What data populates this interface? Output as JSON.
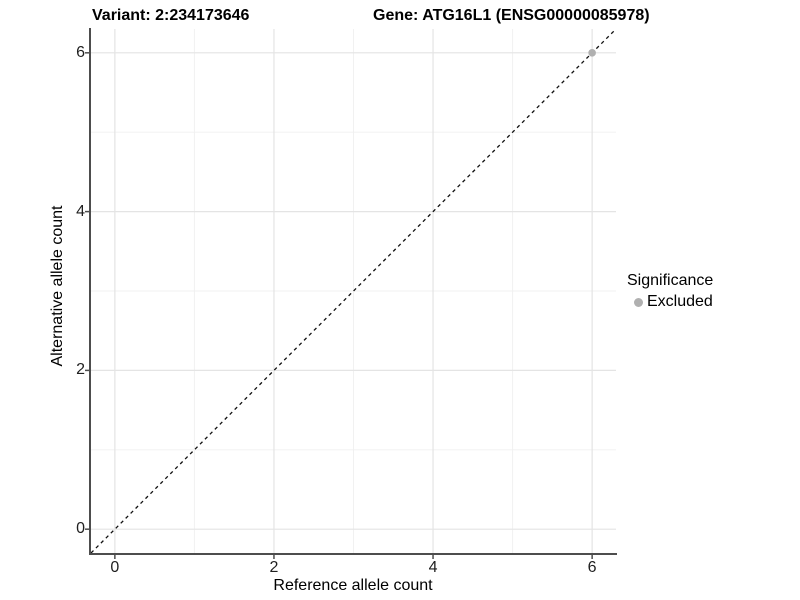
{
  "chart_data": {
    "type": "scatter",
    "titles": {
      "variant": "Variant: 2:234173646",
      "gene": "Gene: ATG16L1 (ENSG00000085978)"
    },
    "xlabel": "Reference allele count",
    "ylabel": "Alternative allele count",
    "xlim": [
      -0.3,
      6.3
    ],
    "ylim": [
      -0.3,
      6.3
    ],
    "x_ticks": [
      0,
      2,
      4,
      6
    ],
    "y_ticks": [
      0,
      2,
      4,
      6
    ],
    "x_minor_ticks": [
      1,
      3,
      5
    ],
    "y_minor_ticks": [
      1,
      3,
      5
    ],
    "grid": true,
    "identity_line": {
      "style": "dashed",
      "x1": -0.3,
      "y1": -0.3,
      "x2": 6.3,
      "y2": 6.3
    },
    "series": [
      {
        "name": "Excluded",
        "color": "#b0b0b0",
        "points": [
          {
            "x": 6,
            "y": 6
          }
        ]
      }
    ],
    "legend": {
      "position": "right",
      "title": "Significance",
      "items": [
        {
          "label": "Excluded",
          "color": "#b0b0b0"
        }
      ]
    },
    "colors": {
      "background": "#ffffff",
      "grid_major": "#e4e4e4",
      "grid_minor": "#f0f0f0",
      "axis_line": "#4d4d4d",
      "tick_mark": "#4d4d4d",
      "identity_line": "#111111",
      "point": "#b0b0b0",
      "tick_text": "#1f1f1f",
      "title_text": "#000000"
    }
  }
}
